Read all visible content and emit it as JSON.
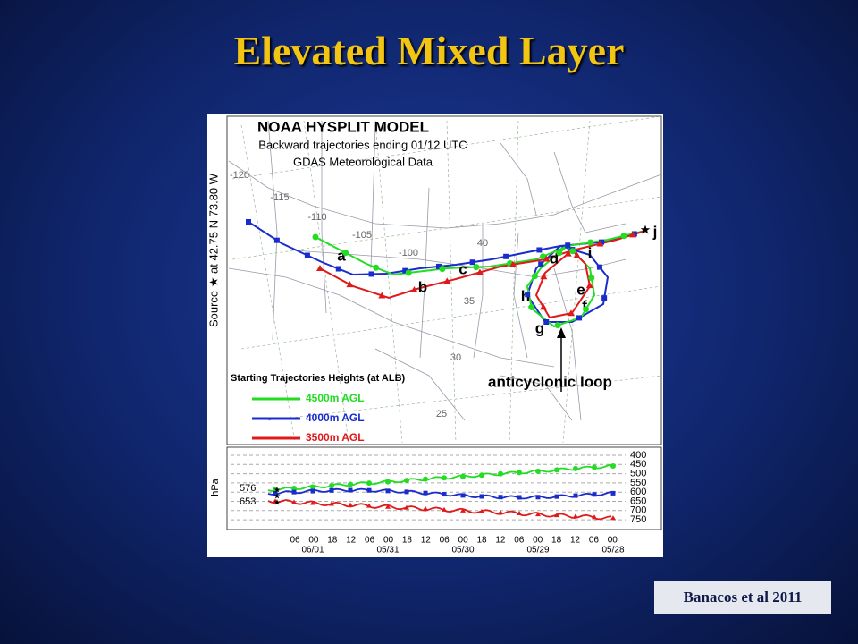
{
  "title": "Elevated Mixed Layer",
  "citation": "Banacos et al 2011",
  "figure": {
    "header": [
      "NOAA HYSPLIT MODEL",
      "Backward trajectories ending 01/12 UTC",
      "GDAS Meteorological Data"
    ],
    "source_label": "Source ★ at 42.75 N 73.80 W",
    "longitude_labels": [
      "-120",
      "-115",
      "-110",
      "-105",
      "-100"
    ],
    "latitude_labels": [
      "40",
      "35",
      "30",
      "25"
    ],
    "point_labels": [
      "a",
      "b",
      "c",
      "d",
      "e",
      "f",
      "g",
      "h",
      "i",
      "j"
    ],
    "annotation": "anticyclonic loop",
    "legend": {
      "title": "Starting Trajectories Heights (at ALB)",
      "items": [
        {
          "label": "4500m AGL",
          "color": "#22dd22"
        },
        {
          "label": "4000m AGL",
          "color": "#1a2ccc"
        },
        {
          "label": "3500m AGL",
          "color": "#e01a1a"
        }
      ]
    },
    "height_panel": {
      "unit": "hPa",
      "pressure_labels": [
        "400",
        "450",
        "500",
        "550",
        "600",
        "650",
        "700",
        "750"
      ],
      "start_labels": [
        "576",
        "653"
      ],
      "time_labels": [
        "06",
        "00",
        "18",
        "12",
        "06",
        "00",
        "18",
        "12",
        "06",
        "00",
        "18",
        "12",
        "06",
        "00",
        "18",
        "12",
        "06",
        "00"
      ],
      "date_labels": [
        "06/01",
        "05/31",
        "05/30",
        "05/29",
        "05/28"
      ]
    }
  }
}
